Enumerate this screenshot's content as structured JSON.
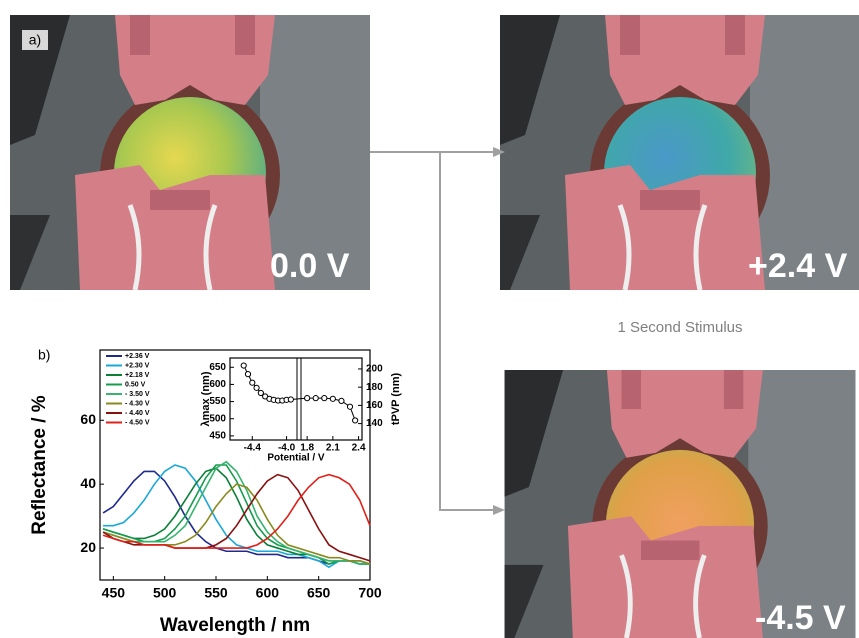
{
  "panels": {
    "panel_label": "a)",
    "photo_labels": [
      "0.0 V",
      "+2.4 V",
      "-4.5 V"
    ],
    "caption": "1 Second Stimulus"
  },
  "chart_data": [
    {
      "type": "line",
      "panel_label": "b)",
      "x_label": "Wavelength / nm",
      "y_label": "Reflectance / %",
      "x": [
        440,
        450,
        460,
        470,
        480,
        490,
        500,
        510,
        520,
        530,
        540,
        550,
        560,
        570,
        580,
        590,
        600,
        610,
        620,
        630,
        640,
        650,
        660,
        670,
        680,
        690,
        700
      ],
      "xlim": [
        437,
        700
      ],
      "ylim": [
        10,
        82
      ],
      "xticks": [
        450,
        500,
        550,
        600,
        650,
        700
      ],
      "yticks": [
        20,
        40,
        60
      ],
      "legend": "top-left",
      "series": [
        {
          "name": "+2.36 V",
          "color": "#1f2a8f",
          "values": [
            31,
            33,
            37,
            41,
            44,
            44,
            41,
            36,
            30,
            25,
            22,
            20,
            19,
            19,
            19,
            18,
            18,
            18,
            17,
            17,
            17,
            16,
            15,
            16,
            16,
            16,
            15
          ]
        },
        {
          "name": "+2.30 V",
          "color": "#1aa8d8",
          "values": [
            27,
            27,
            28,
            31,
            35,
            40,
            44,
            46,
            45,
            41,
            35,
            29,
            24,
            21,
            20,
            19,
            19,
            19,
            18,
            18,
            17,
            16,
            14,
            16,
            16,
            15,
            15
          ]
        },
        {
          "name": "+2.18 V",
          "color": "#0a7f36",
          "values": [
            26,
            25,
            24,
            23,
            23,
            24,
            26,
            30,
            35,
            40,
            44,
            45,
            42,
            36,
            29,
            24,
            21,
            20,
            19,
            18,
            18,
            17,
            16,
            16,
            16,
            15,
            15
          ]
        },
        {
          "name": "0.50 V",
          "color": "#169c4c",
          "values": [
            26,
            25,
            24,
            23,
            22,
            22,
            23,
            26,
            30,
            36,
            42,
            46,
            46,
            41,
            34,
            27,
            23,
            21,
            20,
            19,
            18,
            17,
            15,
            16,
            16,
            15,
            15
          ]
        },
        {
          "name": "- 3.50 V",
          "color": "#35b56e",
          "values": [
            25,
            24,
            23,
            22,
            22,
            22,
            22,
            24,
            27,
            33,
            39,
            45,
            47,
            44,
            38,
            30,
            25,
            22,
            20,
            19,
            18,
            17,
            16,
            16,
            16,
            15,
            15
          ]
        },
        {
          "name": "- 4.30 V",
          "color": "#8a8a20",
          "values": [
            25,
            24,
            23,
            22,
            21,
            21,
            21,
            21,
            22,
            24,
            28,
            33,
            37,
            40,
            39,
            35,
            29,
            24,
            21,
            20,
            19,
            18,
            17,
            17,
            16,
            16,
            15
          ]
        },
        {
          "name": "- 4.40 V",
          "color": "#8a1010",
          "values": [
            25,
            23,
            22,
            21,
            21,
            21,
            21,
            20,
            20,
            20,
            20,
            21,
            23,
            27,
            32,
            37,
            41,
            43,
            42,
            38,
            32,
            26,
            21,
            19,
            18,
            17,
            16
          ]
        },
        {
          "name": "- 4.50 V",
          "color": "#e0201a",
          "values": [
            24,
            23,
            22,
            22,
            21,
            21,
            21,
            20,
            20,
            20,
            20,
            20,
            20,
            20,
            20,
            21,
            23,
            26,
            30,
            35,
            39,
            42,
            43,
            42,
            40,
            35,
            27
          ]
        }
      ]
    },
    {
      "type": "line",
      "markers": true,
      "x_label": "Potential / V",
      "y_label": "λmax (nm)",
      "y2_label": "tPVP (nm)",
      "x": [
        -4.5,
        -4.45,
        -4.4,
        -4.35,
        -4.3,
        -4.25,
        -4.2,
        -4.15,
        -4.1,
        -4.05,
        -4.0,
        -3.95,
        1.8,
        1.9,
        2.0,
        2.1,
        2.2,
        2.3,
        2.36
      ],
      "xlim": [
        -4.66,
        2.44
      ],
      "x_break": [
        -3.89,
        1.74
      ],
      "xticks": [
        -4.4,
        {
          "value": -4,
          "label": "-4.0"
        },
        1.8,
        2.1,
        2.4
      ],
      "ylim": [
        438,
        677
      ],
      "yticks": [
        450,
        500,
        550,
        600,
        650
      ],
      "y2lim": [
        122,
        212
      ],
      "y2ticks": [
        140,
        160,
        180,
        200
      ],
      "series": [
        {
          "color": "#000000",
          "values": [
            655,
            630,
            605,
            590,
            575,
            565,
            558,
            555,
            553,
            553,
            555,
            556,
            560,
            560,
            560,
            558,
            552,
            535,
            495
          ]
        }
      ]
    }
  ]
}
